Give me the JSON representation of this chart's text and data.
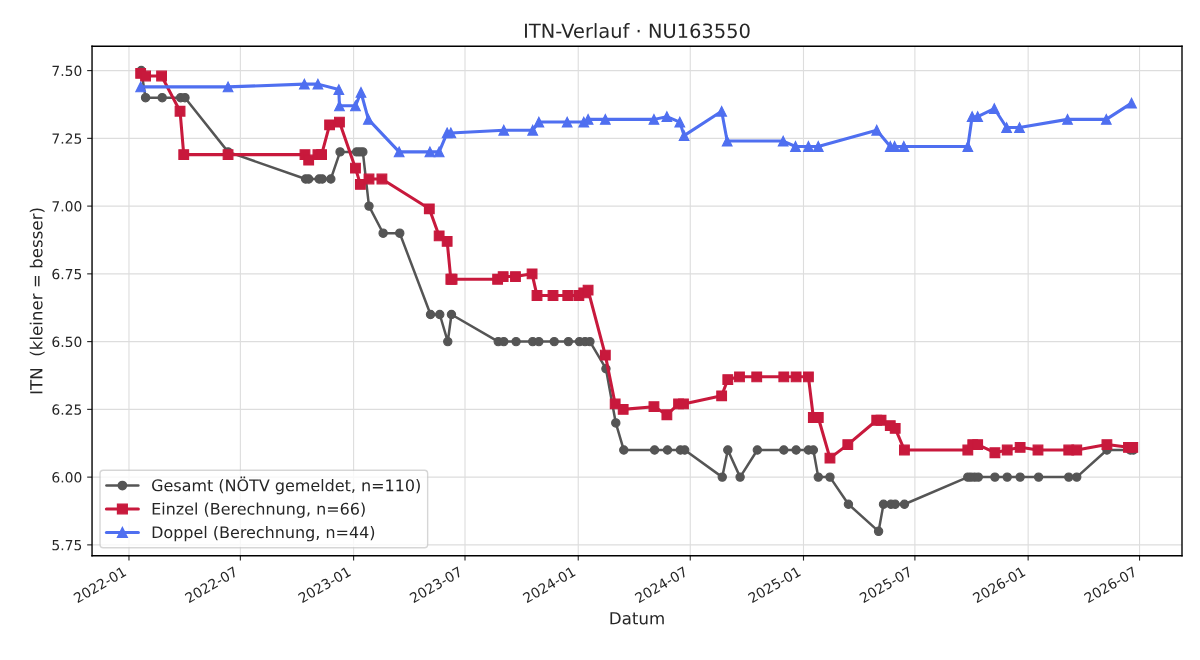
{
  "chart_data": {
    "type": "line",
    "title": "ITN-Verlauf · NU163550",
    "xlabel": "Datum",
    "ylabel": "ITN  (kleiner = besser)",
    "xlim": [
      "2021-11-02",
      "2026-09-08"
    ],
    "xticks": [
      "2022-01",
      "2022-07",
      "2023-01",
      "2023-07",
      "2024-01",
      "2024-07",
      "2025-01",
      "2025-07",
      "2026-01",
      "2026-07"
    ],
    "ylim": [
      5.71,
      7.59
    ],
    "yticks": [
      {
        "value": 5.75,
        "label": "5.75"
      },
      {
        "value": 6.0,
        "label": "6.00"
      },
      {
        "value": 6.25,
        "label": "6.25"
      },
      {
        "value": 6.5,
        "label": "6.50"
      },
      {
        "value": 6.75,
        "label": "6.75"
      },
      {
        "value": 7.0,
        "label": "7.00"
      },
      {
        "value": 7.25,
        "label": "7.25"
      },
      {
        "value": 7.5,
        "label": "7.50"
      }
    ],
    "grid": true,
    "legend": "bottom left",
    "line_style": "solid",
    "series": [
      {
        "name": "Gesamt (NÖTV gemeldet, n=110)",
        "color": "#555555",
        "marker": "circle",
        "x": [
          "2022-01-21",
          "2022-01-28",
          "2022-02-24",
          "2022-03-26",
          "2022-04-02",
          "2022-06-11",
          "2022-10-15",
          "2022-10-20",
          "2022-11-06",
          "2022-11-11",
          "2022-11-25",
          "2022-12-10",
          "2023-01-06",
          "2023-01-11",
          "2023-01-16",
          "2023-01-26",
          "2023-02-18",
          "2023-03-17",
          "2023-05-06",
          "2023-05-21",
          "2023-06-03",
          "2023-06-09",
          "2023-08-24",
          "2023-09-02",
          "2023-09-22",
          "2023-10-19",
          "2023-10-29",
          "2023-11-23",
          "2023-12-16",
          "2024-01-03",
          "2024-01-12",
          "2024-01-20",
          "2024-02-15",
          "2024-03-02",
          "2024-03-15",
          "2024-05-04",
          "2024-05-25",
          "2024-06-15",
          "2024-06-22",
          "2024-08-22",
          "2024-08-31",
          "2024-09-20",
          "2024-10-18",
          "2024-11-30",
          "2024-12-20",
          "2025-01-09",
          "2025-01-17",
          "2025-01-25",
          "2025-02-13",
          "2025-03-15",
          "2025-05-03",
          "2025-05-11",
          "2025-05-23",
          "2025-05-30",
          "2025-06-14",
          "2025-09-25",
          "2025-09-30",
          "2025-10-06",
          "2025-10-12",
          "2025-11-08",
          "2025-11-28",
          "2025-12-19",
          "2026-01-18",
          "2026-03-08",
          "2026-03-21",
          "2026-05-09",
          "2026-06-16",
          "2026-06-21"
        ],
        "values": [
          7.5,
          7.4,
          7.4,
          7.4,
          7.4,
          7.2,
          7.1,
          7.1,
          7.1,
          7.1,
          7.1,
          7.2,
          7.2,
          7.2,
          7.2,
          7.0,
          6.9,
          6.9,
          6.6,
          6.6,
          6.5,
          6.6,
          6.5,
          6.5,
          6.5,
          6.5,
          6.5,
          6.5,
          6.5,
          6.5,
          6.5,
          6.5,
          6.4,
          6.2,
          6.1,
          6.1,
          6.1,
          6.1,
          6.1,
          6.0,
          6.1,
          6.0,
          6.1,
          6.1,
          6.1,
          6.1,
          6.1,
          6.0,
          6.0,
          5.9,
          5.8,
          5.9,
          5.9,
          5.9,
          5.9,
          6.0,
          6.0,
          6.0,
          6.0,
          6.0,
          6.0,
          6.0,
          6.0,
          6.0,
          6.0,
          6.1,
          6.1,
          6.1
        ]
      },
      {
        "name": "Einzel (Berechnung, n=66)",
        "color": "#c8193c",
        "marker": "square",
        "x": [
          "2022-01-20",
          "2022-01-28",
          "2022-02-23",
          "2022-03-25",
          "2022-03-31",
          "2022-06-11",
          "2022-10-14",
          "2022-10-20",
          "2022-11-04",
          "2022-11-10",
          "2022-11-23",
          "2022-12-09",
          "2023-01-04",
          "2023-01-12",
          "2023-01-26",
          "2023-02-16",
          "2023-05-04",
          "2023-05-20",
          "2023-06-02",
          "2023-06-08",
          "2023-06-10",
          "2023-08-23",
          "2023-09-01",
          "2023-09-21",
          "2023-10-18",
          "2023-10-26",
          "2023-11-21",
          "2023-12-15",
          "2024-01-02",
          "2024-01-10",
          "2024-01-17",
          "2024-02-14",
          "2024-03-01",
          "2024-03-14",
          "2024-05-03",
          "2024-05-24",
          "2024-06-12",
          "2024-06-20",
          "2024-08-21",
          "2024-08-31",
          "2024-09-19",
          "2024-10-17",
          "2024-11-30",
          "2024-12-20",
          "2025-01-09",
          "2025-01-17",
          "2025-01-25",
          "2025-02-13",
          "2025-03-14",
          "2025-04-30",
          "2025-05-07",
          "2025-05-22",
          "2025-05-30",
          "2025-06-14",
          "2025-09-25",
          "2025-10-03",
          "2025-10-11",
          "2025-11-08",
          "2025-11-28",
          "2025-12-19",
          "2026-01-17",
          "2026-03-08",
          "2026-03-21",
          "2026-05-09",
          "2026-06-13",
          "2026-06-20"
        ],
        "values": [
          7.49,
          7.48,
          7.48,
          7.35,
          7.19,
          7.19,
          7.19,
          7.17,
          7.19,
          7.19,
          7.3,
          7.31,
          7.14,
          7.08,
          7.1,
          7.1,
          6.99,
          6.89,
          6.87,
          6.73,
          6.73,
          6.73,
          6.74,
          6.74,
          6.75,
          6.67,
          6.67,
          6.67,
          6.67,
          6.68,
          6.69,
          6.45,
          6.27,
          6.25,
          6.26,
          6.23,
          6.27,
          6.27,
          6.3,
          6.36,
          6.37,
          6.37,
          6.37,
          6.37,
          6.37,
          6.22,
          6.22,
          6.07,
          6.12,
          6.21,
          6.21,
          6.19,
          6.18,
          6.1,
          6.1,
          6.12,
          6.12,
          6.09,
          6.1,
          6.11,
          6.1,
          6.1,
          6.1,
          6.12,
          6.11,
          6.11
        ]
      },
      {
        "name": "Doppel (Berechnung, n=44)",
        "color": "#4f6ff0",
        "marker": "triangle",
        "x": [
          "2022-01-20",
          "2022-06-11",
          "2022-10-13",
          "2022-11-04",
          "2022-12-08",
          "2022-12-09",
          "2023-01-04",
          "2023-01-13",
          "2023-01-25",
          "2023-03-16",
          "2023-05-05",
          "2023-05-20",
          "2023-06-02",
          "2023-06-08",
          "2023-09-02",
          "2023-10-19",
          "2023-10-29",
          "2023-12-14",
          "2024-01-10",
          "2024-01-17",
          "2024-02-14",
          "2024-05-03",
          "2024-05-24",
          "2024-06-14",
          "2024-06-21",
          "2024-08-21",
          "2024-08-30",
          "2024-11-29",
          "2024-12-19",
          "2025-01-09",
          "2025-01-25",
          "2025-04-30",
          "2025-05-22",
          "2025-05-29",
          "2025-06-13",
          "2025-09-25",
          "2025-10-02",
          "2025-10-11",
          "2025-11-07",
          "2025-11-27",
          "2025-12-18",
          "2026-03-06",
          "2026-05-08",
          "2026-06-18"
        ],
        "values": [
          7.44,
          7.44,
          7.45,
          7.45,
          7.43,
          7.37,
          7.37,
          7.42,
          7.32,
          7.2,
          7.2,
          7.2,
          7.27,
          7.27,
          7.28,
          7.28,
          7.31,
          7.31,
          7.31,
          7.32,
          7.32,
          7.32,
          7.33,
          7.31,
          7.26,
          7.35,
          7.24,
          7.24,
          7.22,
          7.22,
          7.22,
          7.28,
          7.22,
          7.22,
          7.22,
          7.22,
          7.33,
          7.33,
          7.36,
          7.29,
          7.29,
          7.32,
          7.32,
          7.38
        ]
      }
    ]
  }
}
